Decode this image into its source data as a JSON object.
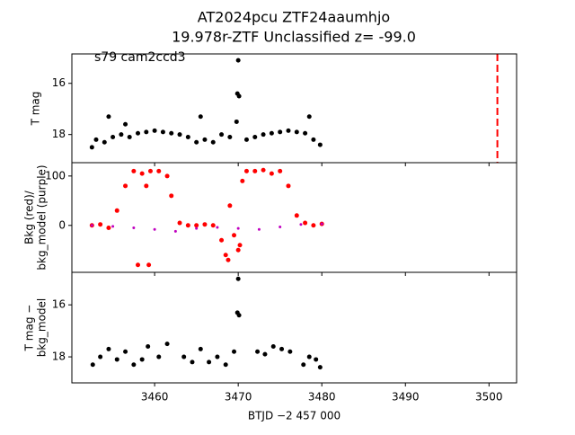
{
  "chart_data": [
    {
      "type": "scatter",
      "title": [
        "AT2024pcu  ZTF24aaumhjo",
        "19.978r-ZTF Unclassified z= -99.0"
      ],
      "annotation": "s79 cam2ccd3",
      "ylabel": [
        "T mag"
      ],
      "xlim": [
        3450.1,
        3503.3
      ],
      "xticks": [
        3460,
        3470,
        3480,
        3490,
        3500
      ],
      "ylim": [
        19.1,
        14.85
      ],
      "yticks": [
        16,
        18
      ],
      "vline": {
        "x": 3501,
        "color": "#ff0000"
      },
      "series": [
        {
          "color": "#000000",
          "x": [
            3452.5,
            3453,
            3454,
            3455,
            3456,
            3457,
            3458,
            3459,
            3460,
            3461,
            3462,
            3463,
            3464,
            3465,
            3466,
            3467,
            3468,
            3469,
            3469.8,
            3469.9,
            3470,
            3470.1,
            3471,
            3472,
            3473,
            3474,
            3475,
            3476,
            3477,
            3478,
            3479,
            3479.8,
            3454.5,
            3456.5,
            3465.5,
            3478.5
          ],
          "values": [
            18.5,
            18.2,
            18.3,
            18.1,
            18.0,
            18.1,
            17.95,
            17.9,
            17.85,
            17.9,
            17.95,
            18.0,
            18.1,
            18.3,
            18.2,
            18.3,
            18.0,
            18.1,
            17.5,
            16.4,
            15.1,
            16.5,
            18.2,
            18.1,
            18.0,
            17.95,
            17.9,
            17.85,
            17.9,
            17.95,
            18.2,
            18.4,
            17.3,
            17.6,
            17.3,
            17.3
          ]
        }
      ]
    },
    {
      "type": "scatter",
      "ylabel": [
        "Bkg (red)/",
        "bkg_model (purple)"
      ],
      "xlim": [
        3450.1,
        3503.3
      ],
      "xticks": [
        3460,
        3470,
        3480,
        3490,
        3500
      ],
      "ylim": [
        -95,
        127
      ],
      "yticks": [
        0,
        100
      ],
      "series": [
        {
          "color": "#ff0000",
          "radius": 2.5,
          "x": [
            3452.5,
            3453.5,
            3454.5,
            3455.5,
            3456.5,
            3457.5,
            3458.5,
            3459,
            3459.5,
            3460.5,
            3461.5,
            3462,
            3463,
            3464,
            3465,
            3466,
            3467,
            3468,
            3468.5,
            3469,
            3469.5,
            3470,
            3470.5,
            3471,
            3472,
            3473,
            3474,
            3475,
            3476,
            3477,
            3478,
            3479,
            3480,
            3458,
            3459.3,
            3468.8,
            3470.2
          ],
          "values": [
            0,
            2,
            -5,
            30,
            80,
            110,
            105,
            80,
            110,
            110,
            100,
            60,
            5,
            0,
            0,
            2,
            0,
            -30,
            -60,
            40,
            -20,
            -50,
            90,
            110,
            110,
            112,
            105,
            110,
            80,
            20,
            5,
            0,
            3,
            -80,
            -80,
            -70,
            -40
          ]
        },
        {
          "color": "#c000c0",
          "radius": 1.5,
          "x": [
            3452.5,
            3455,
            3457.5,
            3460,
            3462.5,
            3465,
            3467.5,
            3470,
            3472.5,
            3475,
            3477.5,
            3480
          ],
          "values": [
            0,
            -2,
            -5,
            -8,
            -12,
            -6,
            -4,
            -6,
            -8,
            -3,
            2,
            3
          ]
        }
      ]
    },
    {
      "type": "scatter",
      "ylabel": [
        "T mag −",
        "bkg_model"
      ],
      "xlabel": "BTJD −2 457 000",
      "xlim": [
        3450.1,
        3503.3
      ],
      "xticks": [
        3460,
        3470,
        3480,
        3490,
        3500
      ],
      "ylim": [
        19.0,
        14.75
      ],
      "yticks": [
        16,
        18
      ],
      "series": [
        {
          "color": "#000000",
          "x": [
            3452.6,
            3453.5,
            3454.5,
            3455.5,
            3456.5,
            3457.5,
            3458.5,
            3459.2,
            3460.5,
            3461.5,
            3463.5,
            3464.5,
            3465.5,
            3466.5,
            3467.5,
            3468.5,
            3469.5,
            3469.9,
            3470,
            3470.1,
            3472.3,
            3473.2,
            3474.2,
            3475.2,
            3476.2,
            3477.8,
            3478.5,
            3479.3,
            3479.8
          ],
          "values": [
            18.3,
            18.0,
            17.7,
            18.1,
            17.8,
            18.3,
            18.1,
            17.6,
            18.0,
            17.5,
            18.0,
            18.2,
            17.7,
            18.2,
            18.0,
            18.3,
            17.8,
            16.3,
            15.0,
            16.4,
            17.8,
            17.9,
            17.6,
            17.7,
            17.8,
            18.3,
            18.0,
            18.1,
            18.4
          ]
        }
      ]
    }
  ]
}
